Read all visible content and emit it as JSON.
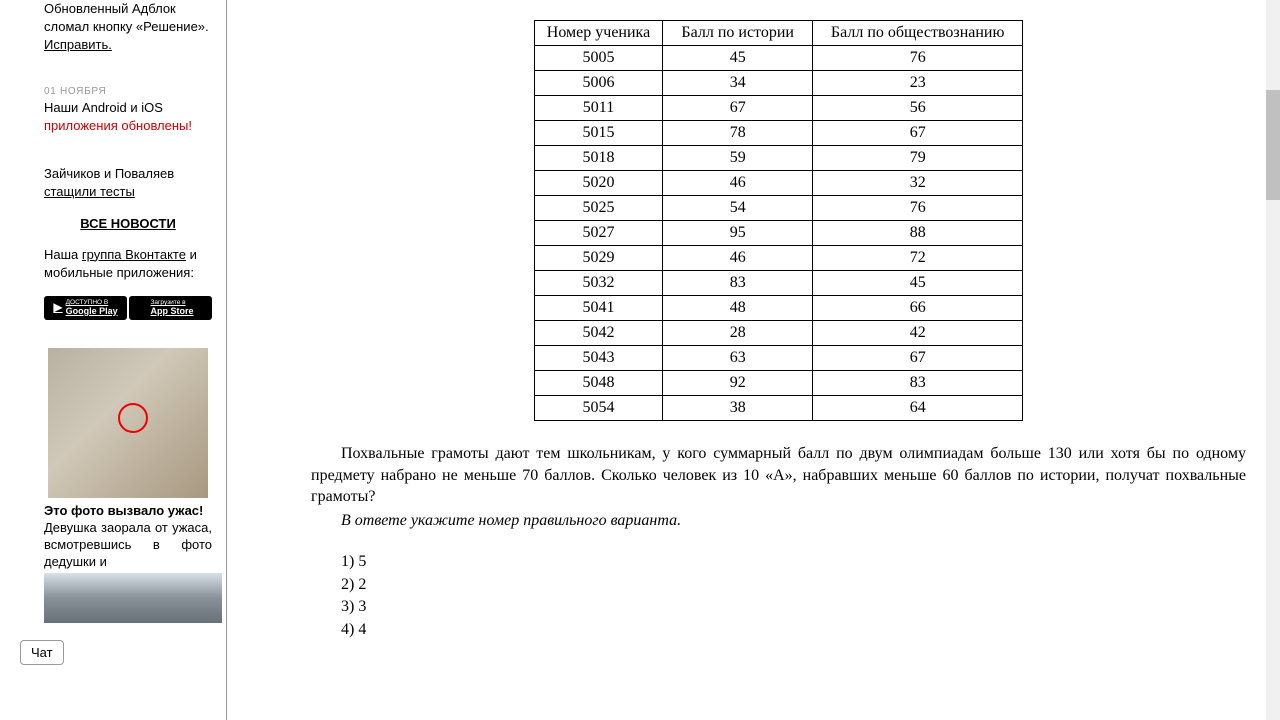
{
  "sidebar": {
    "news": [
      {
        "date": "",
        "text": "Обновленный Адблок сломал кнопку «Решение». ",
        "link": "Исправить."
      },
      {
        "date": "01 НОЯБРЯ",
        "text": "Наши Android и iOS ",
        "link": "приложения обновлены!"
      },
      {
        "date": "",
        "text": "Зайчиков и Поваляев ",
        "underline": "стащили тесты"
      }
    ],
    "allNews": "ВСЕ НОВОСТИ",
    "groupText": "Наша ",
    "groupLink": "группа Вконтакте",
    "mobileText": " и мобильные приложения:",
    "googlePlay": "Google Play",
    "googlePlayTop": "ДОСТУПНО В",
    "appStore": "App Store",
    "appStoreTop": "Загрузите в",
    "adTitle": "Это фото вызвало ужас!",
    "adText": "Девушка заорала от ужаса, всмотревшись в фото дедушки и"
  },
  "table": {
    "headers": [
      "Номер ученика",
      "Балл по истории",
      "Балл по обществознанию"
    ],
    "rows": [
      [
        "5005",
        "45",
        "76"
      ],
      [
        "5006",
        "34",
        "23"
      ],
      [
        "5011",
        "67",
        "56"
      ],
      [
        "5015",
        "78",
        "67"
      ],
      [
        "5018",
        "59",
        "79"
      ],
      [
        "5020",
        "46",
        "32"
      ],
      [
        "5025",
        "54",
        "76"
      ],
      [
        "5027",
        "95",
        "88"
      ],
      [
        "5029",
        "46",
        "72"
      ],
      [
        "5032",
        "83",
        "45"
      ],
      [
        "5041",
        "48",
        "66"
      ],
      [
        "5042",
        "28",
        "42"
      ],
      [
        "5043",
        "63",
        "67"
      ],
      [
        "5048",
        "92",
        "83"
      ],
      [
        "5054",
        "38",
        "64"
      ]
    ]
  },
  "problem": {
    "text": "Похвальные грамоты дают тем школьникам, у кого суммарный балл по двум олимпиадам больше 130 или хотя бы по одному предмету набрано не меньше 70 баллов. Сколько человек из 10 «А», набравших меньше 60 баллов по истории, получат похвальные грамоты?",
    "hint": "В ответе укажите номер правильного варианта.",
    "options": [
      "1) 5",
      "2) 2",
      "3) 3",
      "4) 4"
    ]
  },
  "chat": "Чат",
  "scroll": {
    "thumbTop": 90,
    "thumbHeight": 110
  }
}
